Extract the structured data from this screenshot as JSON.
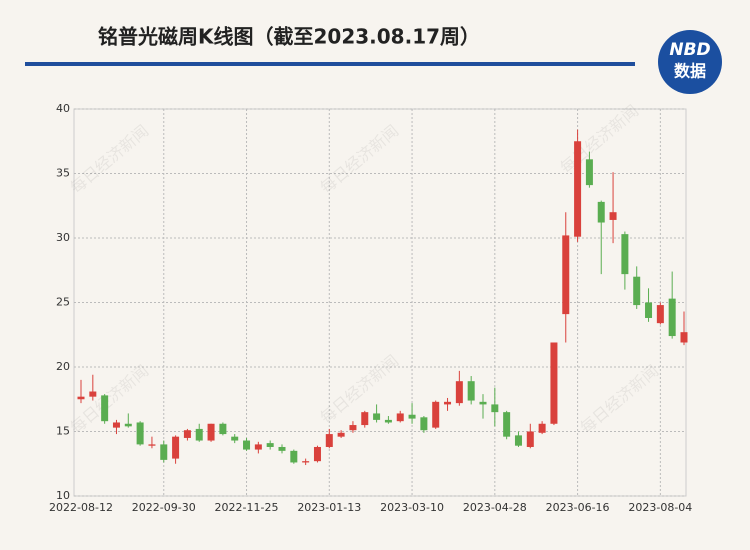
{
  "chart_data": {
    "type": "candlestick",
    "title": "铭普光磁周K线图（截至2023.08.17周）",
    "logo": [
      "NBD",
      "数据"
    ],
    "watermark": "每日经济新闻",
    "categories": [
      "2022-08-12",
      null,
      null,
      null,
      null,
      null,
      null,
      "2022-09-30",
      null,
      null,
      null,
      null,
      null,
      null,
      "2022-11-25",
      null,
      null,
      null,
      null,
      null,
      null,
      "2023-01-13",
      null,
      null,
      null,
      null,
      null,
      null,
      "2023-03-10",
      null,
      null,
      null,
      null,
      null,
      null,
      "2023-04-28",
      null,
      null,
      null,
      null,
      null,
      null,
      "2023-06-16",
      null,
      null,
      null,
      null,
      null,
      null,
      "2023-08-04",
      null,
      null
    ],
    "open": [
      17.5,
      17.7,
      17.8,
      15.3,
      15.6,
      15.7,
      13.9,
      14.0,
      12.9,
      14.5,
      15.2,
      14.3,
      15.6,
      14.6,
      14.3,
      13.6,
      14.1,
      13.8,
      13.5,
      12.6,
      12.7,
      13.8,
      14.6,
      15.1,
      15.5,
      16.4,
      15.9,
      15.8,
      16.3,
      16.1,
      15.3,
      17.1,
      17.2,
      18.9,
      17.3,
      17.1,
      16.5,
      14.7,
      13.8,
      14.9,
      15.6,
      24.1,
      30.1,
      36.1,
      32.8,
      31.4,
      30.3,
      27.0,
      25.0,
      23.4,
      25.3,
      21.9
    ],
    "high": [
      19.0,
      19.4,
      17.9,
      15.9,
      16.4,
      15.8,
      14.6,
      14.3,
      14.7,
      15.2,
      15.6,
      15.6,
      15.7,
      14.8,
      14.5,
      14.2,
      14.3,
      14.0,
      13.6,
      12.9,
      13.9,
      15.2,
      15.1,
      15.8,
      16.6,
      17.1,
      16.2,
      16.6,
      17.2,
      16.2,
      17.4,
      17.6,
      19.7,
      19.3,
      17.9,
      18.4,
      16.6,
      15.0,
      15.6,
      15.8,
      21.9,
      32.0,
      38.4,
      36.7,
      32.9,
      35.1,
      30.5,
      27.8,
      26.1,
      25.0,
      27.4,
      24.3
    ],
    "low": [
      17.2,
      17.4,
      15.6,
      14.8,
      15.3,
      13.9,
      13.7,
      12.6,
      12.5,
      14.3,
      14.2,
      14.2,
      14.7,
      14.1,
      13.5,
      13.3,
      13.6,
      13.3,
      12.5,
      12.4,
      12.6,
      13.7,
      14.5,
      14.9,
      15.3,
      15.7,
      15.6,
      15.7,
      15.6,
      14.9,
      15.2,
      16.6,
      17.0,
      17.1,
      16.0,
      15.4,
      14.4,
      13.8,
      13.7,
      14.8,
      15.5,
      21.9,
      29.7,
      33.9,
      27.2,
      29.6,
      26.0,
      24.5,
      23.5,
      23.3,
      22.2,
      21.7
    ],
    "close": [
      17.7,
      18.1,
      15.8,
      15.7,
      15.4,
      14.0,
      14.0,
      12.8,
      14.6,
      15.1,
      14.3,
      15.6,
      14.8,
      14.3,
      13.6,
      14.0,
      13.8,
      13.5,
      12.6,
      12.7,
      13.8,
      14.8,
      14.9,
      15.5,
      16.5,
      15.9,
      15.7,
      16.4,
      16.0,
      15.1,
      17.3,
      17.3,
      18.9,
      17.4,
      17.1,
      16.5,
      14.6,
      13.9,
      15.0,
      15.6,
      21.9,
      30.2,
      37.5,
      34.1,
      31.2,
      32.0,
      27.2,
      24.8,
      23.8,
      24.8,
      22.4,
      22.7
    ],
    "up_color": "#d9413c",
    "down_color": "#5aad51",
    "ylim": [
      10,
      40
    ],
    "yticks": [
      10,
      15,
      20,
      25,
      30,
      35,
      40
    ],
    "grid": true
  }
}
